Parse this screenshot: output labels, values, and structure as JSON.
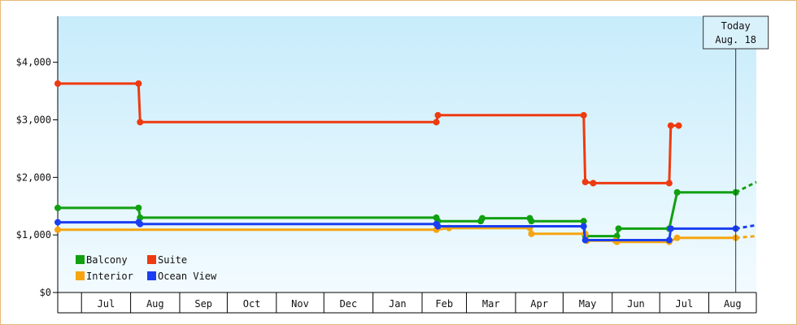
{
  "chart_data": {
    "type": "line",
    "step": true,
    "ylim": [
      0,
      4800
    ],
    "y_ticks": [
      {
        "value": 0,
        "label": "$0"
      },
      {
        "value": 1000,
        "label": "$1,000"
      },
      {
        "value": 2000,
        "label": "$2,000"
      },
      {
        "value": 3000,
        "label": "$3,000"
      },
      {
        "value": 4000,
        "label": "$4,000"
      }
    ],
    "x_months": [
      "Jul",
      "Aug",
      "Sep",
      "Oct",
      "Nov",
      "Dec",
      "Jan",
      "Feb",
      "Mar",
      "Apr",
      "May",
      "Jun",
      "Jul",
      "Aug"
    ],
    "xlim": [
      "2022-06-16",
      "2023-08-31"
    ],
    "month_bounds": [
      "2022-07-01",
      "2022-08-01",
      "2022-09-01",
      "2022-10-01",
      "2022-11-01",
      "2022-12-01",
      "2023-01-01",
      "2023-02-01",
      "2023-03-01",
      "2023-04-01",
      "2023-05-01",
      "2023-06-01",
      "2023-07-01",
      "2023-08-01"
    ],
    "today": {
      "label_line1": "Today",
      "label_line2": "Aug. 18",
      "date": "2023-08-18"
    },
    "projection_end": "2023-08-31",
    "grid": false,
    "legend_position": "bottom-left",
    "series": [
      {
        "name": "Balcony",
        "color": "#11a011",
        "points": [
          {
            "date": "2022-06-16",
            "value": 1470
          },
          {
            "date": "2022-08-06",
            "value": 1470
          },
          {
            "date": "2022-08-07",
            "value": 1300
          },
          {
            "date": "2023-02-10",
            "value": 1300
          },
          {
            "date": "2023-02-11",
            "value": 1240
          },
          {
            "date": "2023-03-10",
            "value": 1240
          },
          {
            "date": "2023-03-11",
            "value": 1290
          },
          {
            "date": "2023-04-10",
            "value": 1290
          },
          {
            "date": "2023-04-11",
            "value": 1240
          },
          {
            "date": "2023-05-14",
            "value": 1240
          },
          {
            "date": "2023-05-15",
            "value": 980
          },
          {
            "date": "2023-06-04",
            "value": 980
          },
          {
            "date": "2023-06-05",
            "value": 1110
          },
          {
            "date": "2023-07-07",
            "value": 1110
          },
          {
            "date": "2023-07-12",
            "value": 1740
          },
          {
            "date": "2023-08-18",
            "value": 1740
          }
        ],
        "projection": 1920
      },
      {
        "name": "Suite",
        "color": "#ee3a10",
        "points": [
          {
            "date": "2022-06-16",
            "value": 3630
          },
          {
            "date": "2022-08-06",
            "value": 3630
          },
          {
            "date": "2022-08-07",
            "value": 2960
          },
          {
            "date": "2023-02-10",
            "value": 2960
          },
          {
            "date": "2023-02-11",
            "value": 3080
          },
          {
            "date": "2023-05-14",
            "value": 3080
          },
          {
            "date": "2023-05-15",
            "value": 1920
          },
          {
            "date": "2023-05-20",
            "value": 1900
          },
          {
            "date": "2023-07-07",
            "value": 1900
          },
          {
            "date": "2023-07-08",
            "value": 2900
          },
          {
            "date": "2023-07-13",
            "value": 2900
          }
        ],
        "projection": null
      },
      {
        "name": "Interior",
        "color": "#f5a511",
        "points": [
          {
            "date": "2022-06-16",
            "value": 1090
          },
          {
            "date": "2023-02-10",
            "value": 1090
          },
          {
            "date": "2023-02-18",
            "value": 1120
          },
          {
            "date": "2023-04-10",
            "value": 1120
          },
          {
            "date": "2023-04-11",
            "value": 1020
          },
          {
            "date": "2023-05-15",
            "value": 1020
          },
          {
            "date": "2023-05-16",
            "value": 900
          },
          {
            "date": "2023-06-03",
            "value": 900
          },
          {
            "date": "2023-06-04",
            "value": 880
          },
          {
            "date": "2023-07-07",
            "value": 880
          },
          {
            "date": "2023-07-12",
            "value": 950
          },
          {
            "date": "2023-08-18",
            "value": 950
          }
        ],
        "projection": 980
      },
      {
        "name": "Ocean View",
        "color": "#1a3ef0",
        "points": [
          {
            "date": "2022-06-16",
            "value": 1220
          },
          {
            "date": "2022-08-06",
            "value": 1220
          },
          {
            "date": "2022-08-07",
            "value": 1190
          },
          {
            "date": "2023-02-10",
            "value": 1190
          },
          {
            "date": "2023-02-11",
            "value": 1150
          },
          {
            "date": "2023-05-14",
            "value": 1150
          },
          {
            "date": "2023-05-15",
            "value": 910
          },
          {
            "date": "2023-07-07",
            "value": 910
          },
          {
            "date": "2023-07-08",
            "value": 1110
          },
          {
            "date": "2023-08-18",
            "value": 1110
          }
        ],
        "projection": 1170
      }
    ],
    "legend": [
      {
        "name": "Balcony",
        "color": "#11a011"
      },
      {
        "name": "Suite",
        "color": "#ee3a10"
      },
      {
        "name": "Interior",
        "color": "#f5a511"
      },
      {
        "name": "Ocean View",
        "color": "#1a3ef0"
      }
    ]
  }
}
